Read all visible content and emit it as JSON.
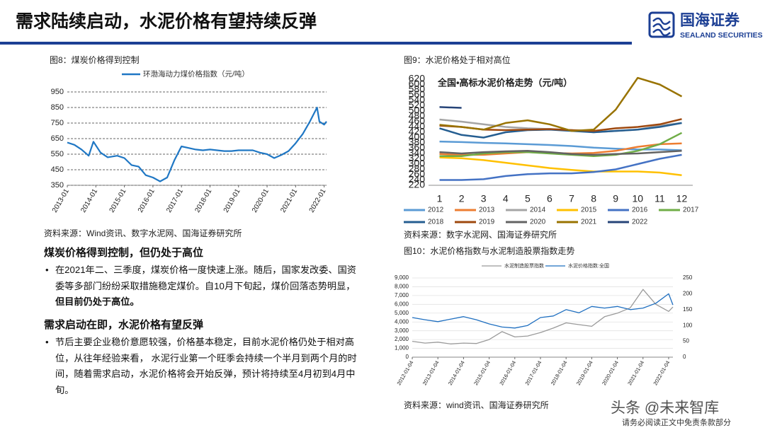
{
  "header": {
    "title": "需求陆续启动，水泥价格有望持续反弹",
    "logo_cn": "国海证券",
    "logo_en": "SEALAND SECURITIES"
  },
  "chart_data": [
    {
      "type": "line",
      "title": "图8：煤炭价格得到控制",
      "source": "资料来源：Wind资讯、数字水泥网、国海证券研究所",
      "x": [
        "2013-01",
        "2013-04",
        "2013-07",
        "2013-10",
        "2013-12",
        "2014-03",
        "2014-06",
        "2014-10",
        "2015-01",
        "2015-04",
        "2015-07",
        "2015-10",
        "2016-01",
        "2016-04",
        "2016-07",
        "2016-10",
        "2017-01",
        "2017-04",
        "2017-07",
        "2017-10",
        "2018-01",
        "2018-04",
        "2018-07",
        "2018-10",
        "2019-01",
        "2019-04",
        "2019-07",
        "2019-10",
        "2020-01",
        "2020-04",
        "2020-07",
        "2020-10",
        "2021-01",
        "2021-04",
        "2021-07",
        "2021-10",
        "2021-11",
        "2022-01",
        "2022-02"
      ],
      "xlim": [
        "2013-01",
        "2022-02"
      ],
      "xticks": [
        "2013-01",
        "2014-01",
        "2015-01",
        "2016-01",
        "2017-01",
        "2018-01",
        "2019-01",
        "2020-01",
        "2021-01",
        "2022-01"
      ],
      "ylim": [
        350,
        950
      ],
      "yticks": [
        350,
        450,
        550,
        650,
        750,
        850,
        950
      ],
      "grid": true,
      "series": [
        {
          "name": "环渤海动力煤价格指数（元/吨）",
          "color": "#1f77c4",
          "values": [
            625,
            610,
            580,
            540,
            630,
            560,
            530,
            540,
            525,
            480,
            470,
            415,
            400,
            375,
            400,
            510,
            600,
            590,
            580,
            575,
            580,
            575,
            570,
            570,
            575,
            575,
            575,
            560,
            550,
            525,
            545,
            570,
            620,
            680,
            760,
            850,
            760,
            740,
            760
          ]
        }
      ]
    },
    {
      "type": "line",
      "title": "图9：水泥价格处于相对高位",
      "subtitle": "全国•高标水泥价格走势（元/吨）",
      "source": "资料来源：数字水泥网、国海证券研究所",
      "categories": [
        "1",
        "2",
        "3",
        "4",
        "5",
        "6",
        "7",
        "8",
        "9",
        "10",
        "11",
        "12"
      ],
      "ylim": [
        220,
        620
      ],
      "yticks": [
        220,
        240,
        260,
        280,
        300,
        320,
        340,
        360,
        380,
        400,
        420,
        440,
        460,
        480,
        500,
        520,
        540,
        560,
        580,
        600,
        620
      ],
      "grid": false,
      "series": [
        {
          "name": "2012",
          "color": "#5b9bd5",
          "values": [
            385,
            383,
            380,
            378,
            375,
            372,
            368,
            362,
            358,
            355,
            355,
            352
          ]
        },
        {
          "name": "2013",
          "color": "#ed7d31",
          "values": [
            338,
            335,
            335,
            340,
            345,
            342,
            340,
            342,
            350,
            365,
            375,
            378
          ]
        },
        {
          "name": "2014",
          "color": "#a5a5a5",
          "values": [
            468,
            460,
            450,
            440,
            435,
            432,
            428,
            420,
            425,
            430,
            445,
            455
          ]
        },
        {
          "name": "2015",
          "color": "#ffc000",
          "values": [
            325,
            322,
            315,
            305,
            295,
            285,
            278,
            272,
            272,
            272,
            268,
            258
          ]
        },
        {
          "name": "2016",
          "color": "#4472c4",
          "values": [
            240,
            240,
            243,
            255,
            262,
            265,
            265,
            270,
            280,
            300,
            320,
            335
          ]
        },
        {
          "name": "2017",
          "color": "#70ad47",
          "values": [
            330,
            330,
            340,
            345,
            345,
            340,
            335,
            330,
            335,
            350,
            375,
            418
          ]
        },
        {
          "name": "2018",
          "color": "#255e91",
          "values": [
            435,
            410,
            400,
            420,
            428,
            430,
            425,
            420,
            425,
            430,
            440,
            455
          ]
        },
        {
          "name": "2019",
          "color": "#9e480e",
          "values": [
            445,
            440,
            430,
            428,
            430,
            432,
            428,
            425,
            435,
            440,
            450,
            470
          ]
        },
        {
          "name": "2020",
          "color": "#636363",
          "values": [
            345,
            340,
            345,
            348,
            350,
            345,
            338,
            335,
            338,
            340,
            345,
            350
          ]
        },
        {
          "name": "2021",
          "color": "#997300",
          "values": [
            448,
            440,
            430,
            455,
            465,
            450,
            425,
            430,
            505,
            625,
            600,
            555
          ]
        },
        {
          "name": "2022",
          "color": "#264478",
          "values": [
            515,
            512,
            null,
            null,
            null,
            null,
            null,
            null,
            null,
            null,
            null,
            null
          ]
        }
      ]
    },
    {
      "type": "line",
      "title": "图10：水泥价格指数与水泥制造股票指数走势",
      "source": "资料来源：wind资讯、国海证券研究所",
      "x": [
        "2012-01-04",
        "2012-07-04",
        "2013-01-04",
        "2013-07-04",
        "2014-01-04",
        "2014-07-04",
        "2015-01-04",
        "2015-07-04",
        "2016-01-04",
        "2016-07-04",
        "2017-01-04",
        "2017-07-04",
        "2018-01-04",
        "2018-07-04",
        "2019-01-04",
        "2019-07-04",
        "2020-01-04",
        "2020-07-04",
        "2021-01-04",
        "2021-07-04",
        "2022-01-04",
        "2022-03-04"
      ],
      "xlim": [
        "2012-01-04",
        "2022-03-04"
      ],
      "xticks": [
        "2012-01-04",
        "2013-01-04",
        "2014-01-04",
        "2015-01-04",
        "2016-01-04",
        "2017-01-04",
        "2018-01-04",
        "2019-01-04",
        "2020-01-04",
        "2021-01-04",
        "2022-01-04"
      ],
      "ylim": [
        0,
        9000
      ],
      "yticks": [
        0,
        {
          "value": 1000,
          "label": "1,000"
        },
        {
          "value": 2000,
          "label": "2,000"
        },
        {
          "value": 3000,
          "label": "3,000"
        },
        {
          "value": 4000,
          "label": "4,000"
        },
        {
          "value": 5000,
          "label": "5,000"
        },
        {
          "value": 6000,
          "label": "6,000"
        },
        {
          "value": 7000,
          "label": "7,000"
        },
        {
          "value": 8000,
          "label": "8,000"
        },
        {
          "value": 9000,
          "label": "9,000"
        }
      ],
      "y2lim": [
        0,
        250
      ],
      "y2ticks": [
        0,
        50,
        100,
        150,
        200,
        250
      ],
      "grid": true,
      "series": [
        {
          "name": "水泥制造股票指数",
          "color": "#9a9a9a",
          "values": [
            1800,
            1600,
            1700,
            1500,
            1600,
            1550,
            2000,
            2900,
            2300,
            2400,
            2800,
            3300,
            3900,
            3700,
            3500,
            4600,
            5000,
            5600,
            7700,
            6000,
            5200,
            5700
          ]
        },
        {
          "name": "水泥价格指数:全国",
          "color": "#1f6fc0",
          "axis": "y2",
          "values": [
            125,
            118,
            112,
            120,
            128,
            118,
            105,
            95,
            92,
            100,
            125,
            130,
            150,
            140,
            160,
            155,
            160,
            150,
            155,
            170,
            200,
            165
          ]
        }
      ]
    }
  ],
  "sections": [
    {
      "heading": "煤炭价格得到控制，但仍处于高位",
      "bullets": [
        [
          {
            "text": "在2021年二、三季度，煤炭价格一度快速上涨。随后，国家发改委、国资委等多部门纷纷采取措施稳定煤价。自10月下旬起，煤价回落态势明显，"
          },
          {
            "text": "但目前仍处于高位。",
            "bold": true
          }
        ]
      ]
    },
    {
      "heading": "需求启动在即，水泥价格有望反弹",
      "bullets": [
        [
          {
            "text": "节后主要企业稳价意愿较强，价格基本稳定，目前水泥价格仍处于相对高位，从往年经验来看， 水泥行业第一个旺季会持续一个半月到两个月的时间，随着需求启动，水泥价格将会开始反弹，预计将持续至4月初到4月中旬。"
          }
        ]
      ]
    }
  ],
  "footer": {
    "watermark": "头条 @未来智库",
    "disclaimer": "请务必阅读正文中免责条款部分"
  }
}
